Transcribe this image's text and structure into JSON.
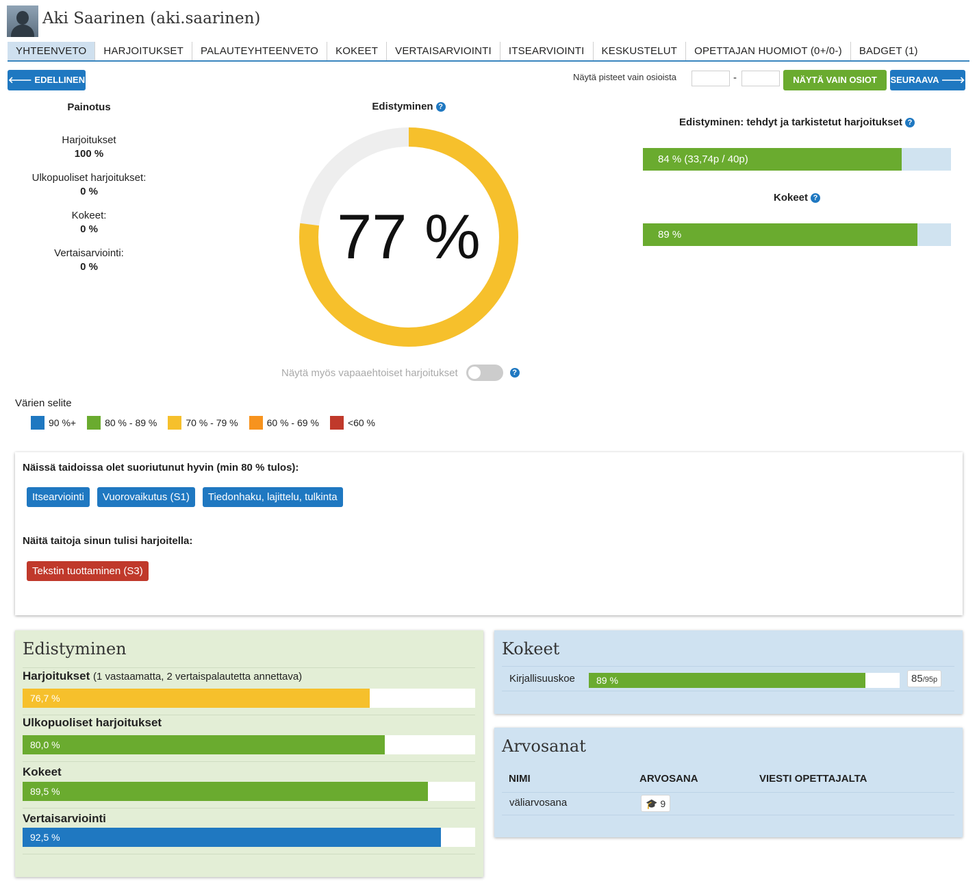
{
  "user": {
    "name": "Aki Saarinen (aki.saarinen)"
  },
  "tabs": [
    {
      "label": "YHTEENVETO"
    },
    {
      "label": "HARJOITUKSET"
    },
    {
      "label": "PALAUTEYHTEENVETO"
    },
    {
      "label": "KOKEET"
    },
    {
      "label": "VERTAISARVIOINTI"
    },
    {
      "label": "ITSEARVIOINTI"
    },
    {
      "label": "KESKUSTELUT"
    },
    {
      "label": "OPETTAJAN HUOMIOT (0+/0-)"
    },
    {
      "label": "BADGET (1)"
    }
  ],
  "toolbar": {
    "prev_label": "EDELLINEN",
    "next_label": "SEURAAVA",
    "filter_label": "Näytä pisteet vain osioista",
    "filter_button": "NÄYTÄ VAIN OSIOT",
    "range_from": "",
    "range_to": "",
    "dash": "-"
  },
  "weighting": {
    "title": "Painotus",
    "items": [
      {
        "label": "Harjoitukset",
        "value": "100 %"
      },
      {
        "label": "Ulkopuoliset harjoitukset:",
        "value": "0 %"
      },
      {
        "label": "Kokeet:",
        "value": "0 %"
      },
      {
        "label": "Vertaisarviointi:",
        "value": "0 %"
      }
    ]
  },
  "overall": {
    "title": "Edistyminen",
    "value_text": "77 %",
    "fraction": 0.77,
    "color": "#f6c02c",
    "track_color": "#eeeeee",
    "toggle_label": "Näytä myös vapaaehtoiset harjoitukset",
    "toggle_on": false
  },
  "right_progress": [
    {
      "title": "Edistyminen: tehdyt ja tarkistetut harjoitukset",
      "text": "84 % (33,74p / 40p)",
      "fraction": 0.84
    },
    {
      "title": "Kokeet",
      "text": "89 %",
      "fraction": 0.89
    }
  ],
  "legend": {
    "title": "Värien selite",
    "items": [
      {
        "label": "90 %+",
        "color": "#1f78c1"
      },
      {
        "label": "80 % - 89 %",
        "color": "#6aab2f"
      },
      {
        "label": "70 % - 79 %",
        "color": "#f6c02c"
      },
      {
        "label": "60 % - 69 %",
        "color": "#f7931e"
      },
      {
        "label": "<60 %",
        "color": "#c0392b"
      }
    ]
  },
  "skills": {
    "good_title": "Näissä taidoissa olet suoriutunut hyvin (min 80 % tulos):",
    "good": [
      "Itsearviointi",
      "Vuorovaikutus (S1)",
      "Tiedonhaku, lajittelu, tulkinta"
    ],
    "good_color": "#1f78c1",
    "practice_title": "Näitä taitoja sinun tulisi harjoitella:",
    "practice": [
      "Tekstin tuottaminen (S3)"
    ],
    "practice_color": "#c0392b"
  },
  "progress_panel": {
    "title": "Edistyminen",
    "rows": [
      {
        "label": "Harjoitukset",
        "note": "(1 vastaamatta, 2 vertaispalautetta annettava)",
        "text": "76,7 %",
        "fraction": 0.767,
        "color": "#f6c02c"
      },
      {
        "label": "Ulkopuoliset harjoitukset",
        "note": "",
        "text": "80,0 %",
        "fraction": 0.8,
        "color": "#6aab2f"
      },
      {
        "label": "Kokeet",
        "note": "",
        "text": "89,5 %",
        "fraction": 0.895,
        "color": "#6aab2f"
      },
      {
        "label": "Vertaisarviointi",
        "note": "",
        "text": "92,5 %",
        "fraction": 0.925,
        "color": "#1f78c1"
      }
    ]
  },
  "exams_panel": {
    "title": "Kokeet",
    "rows": [
      {
        "name": "Kirjallisuuskoe",
        "text": "89 %",
        "fraction": 0.89,
        "score": "85",
        "max": "/95p"
      }
    ]
  },
  "grades_panel": {
    "title": "Arvosanat",
    "headers": [
      "NIMI",
      "ARVOSANA",
      "VIESTI OPETTAJALTA"
    ],
    "rows": [
      {
        "name": "väliarvosana",
        "grade": "9",
        "message": ""
      }
    ]
  }
}
